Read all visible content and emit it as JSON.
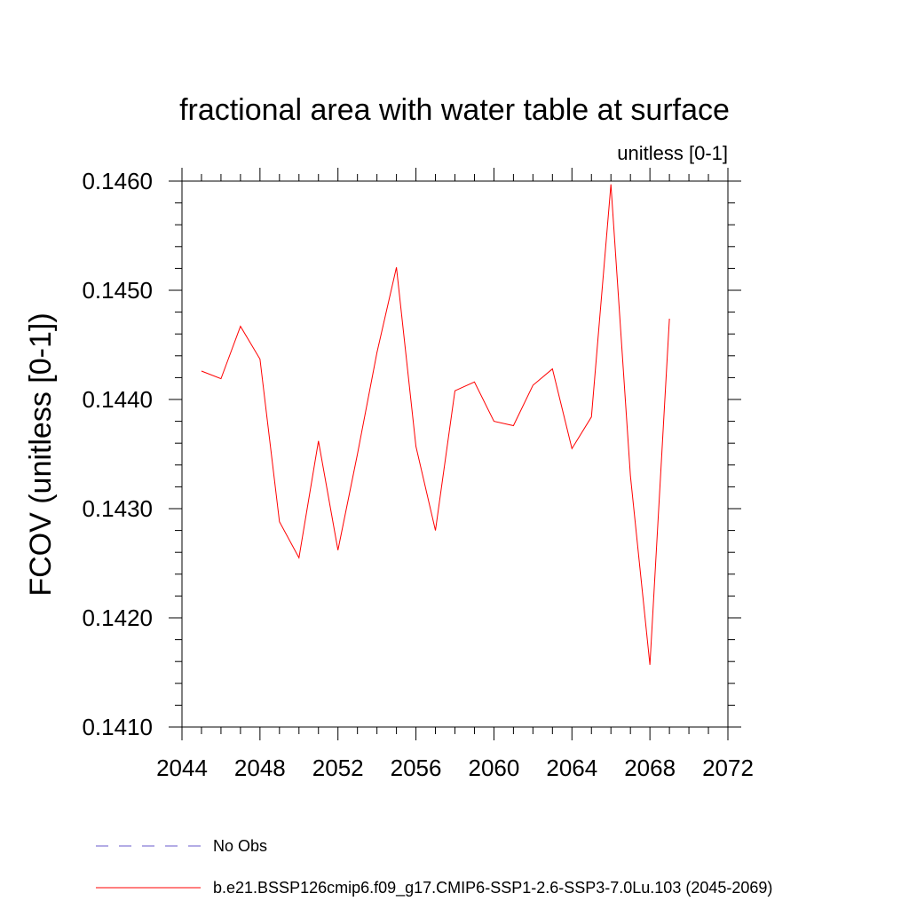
{
  "chart_data": {
    "type": "line",
    "title": "fractional area with water table at surface",
    "units_label": "unitless [0-1]",
    "ylabel": "FCOV  (unitless [0-1])",
    "xlabel": "",
    "xlim": [
      2044,
      2072
    ],
    "ylim": [
      0.141,
      0.146
    ],
    "x_ticks": [
      2044,
      2048,
      2052,
      2056,
      2060,
      2064,
      2068,
      2072
    ],
    "x_tick_labels": [
      "2044",
      "2048",
      "2052",
      "2056",
      "2060",
      "2064",
      "2068",
      "2072"
    ],
    "y_ticks": [
      0.141,
      0.142,
      0.143,
      0.144,
      0.145,
      0.146
    ],
    "y_tick_labels": [
      "0.1410",
      "0.1420",
      "0.1430",
      "0.1440",
      "0.1450",
      "0.1460"
    ],
    "series": [
      {
        "name": "b.e21.BSSP126cmip6.f09_g17.CMIP6-SSP1-2.6-SSP3-7.0Lu.103 (2045-2069)",
        "color": "#ff0000",
        "x": [
          2045,
          2046,
          2047,
          2048,
          2049,
          2050,
          2051,
          2052,
          2053,
          2054,
          2055,
          2056,
          2057,
          2058,
          2059,
          2060,
          2061,
          2062,
          2063,
          2064,
          2065,
          2066,
          2067,
          2068,
          2069
        ],
        "values": [
          0.14426,
          0.14419,
          0.14467,
          0.14437,
          0.14288,
          0.14255,
          0.14362,
          0.14262,
          0.1435,
          0.14443,
          0.14521,
          0.14357,
          0.1428,
          0.14408,
          0.14416,
          0.1438,
          0.14376,
          0.14413,
          0.14428,
          0.14355,
          0.14384,
          0.14597,
          0.1433,
          0.14157,
          0.14474
        ]
      }
    ],
    "legend": [
      {
        "label": "No Obs",
        "style": "dashed",
        "color": "#6a5acd"
      },
      {
        "label": "b.e21.BSSP126cmip6.f09_g17.CMIP6-SSP1-2.6-SSP3-7.0Lu.103 (2045-2069)",
        "style": "solid",
        "color": "#ff0000"
      }
    ]
  }
}
